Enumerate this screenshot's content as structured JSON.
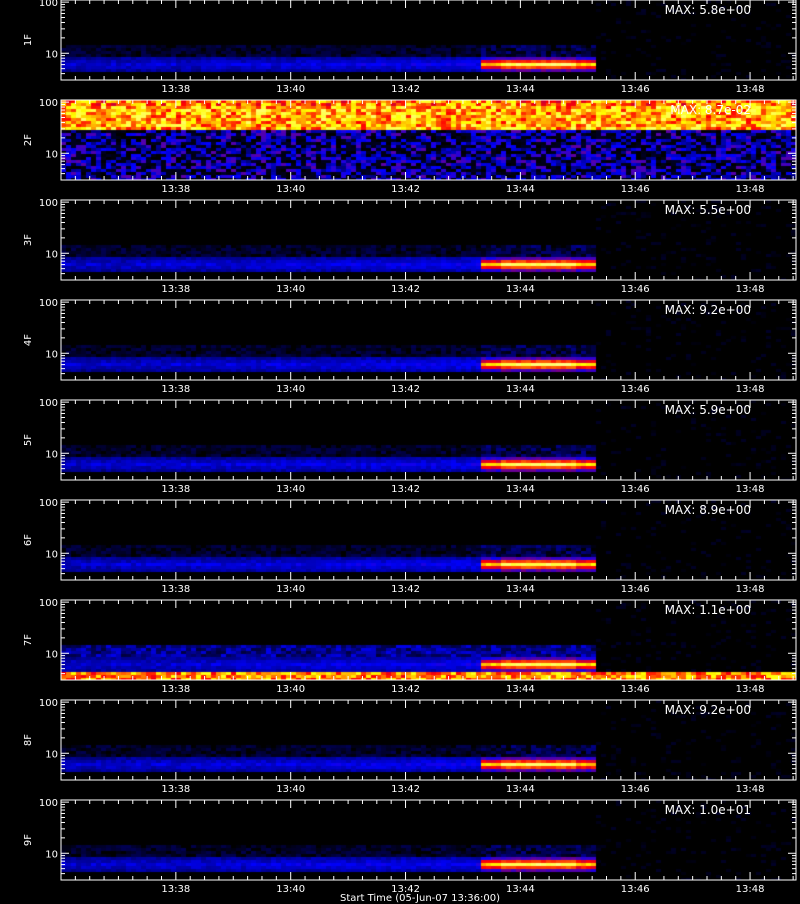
{
  "chart_data": {
    "type": "heatmap",
    "colormap": "black-blue-red-yellow-white",
    "colormap_stops": [
      "#000000",
      "#0000ff",
      "#ff0000",
      "#ffff00",
      "#ffffff"
    ],
    "x_tick_labels": [
      "13:38",
      "13:40",
      "13:42",
      "13:44",
      "13:46",
      "13:48"
    ],
    "x_tick_minutes": [
      38,
      40,
      42,
      44,
      46,
      48
    ],
    "x_range_minutes": [
      36.0,
      48.8
    ],
    "y_scale": "log",
    "y_range": [
      3,
      110
    ],
    "y_tick_labels": [
      "100",
      "10"
    ],
    "y_tick_values": [
      100,
      10
    ],
    "panels": [
      {
        "label": "1F",
        "max_text": "MAX: 5.8e+00",
        "pattern": "flare"
      },
      {
        "label": "2F",
        "max_text": "MAX: 8.7e-02",
        "pattern": "noisy-high"
      },
      {
        "label": "3F",
        "max_text": "MAX: 5.5e+00",
        "pattern": "flare"
      },
      {
        "label": "4F",
        "max_text": "MAX: 9.2e+00",
        "pattern": "flare"
      },
      {
        "label": "5F",
        "max_text": "MAX: 5.9e+00",
        "pattern": "flare"
      },
      {
        "label": "6F",
        "max_text": "MAX: 8.9e+00",
        "pattern": "flare"
      },
      {
        "label": "7F",
        "max_text": "MAX: 1.1e+00",
        "pattern": "flare-with-low-band"
      },
      {
        "label": "8F",
        "max_text": "MAX: 9.2e+00",
        "pattern": "flare"
      },
      {
        "label": "9F",
        "max_text": "MAX: 1.0e+01",
        "pattern": "flare"
      }
    ],
    "data_end_minute": 45.3,
    "flare_peak_start_minute": 43.3,
    "flare_core_minutes": [
      43.6,
      44.9
    ],
    "flare_energy_band": [
      4.5,
      8
    ]
  },
  "x_axis_title": "Start Time (05-Jun-07 13:36:00)"
}
